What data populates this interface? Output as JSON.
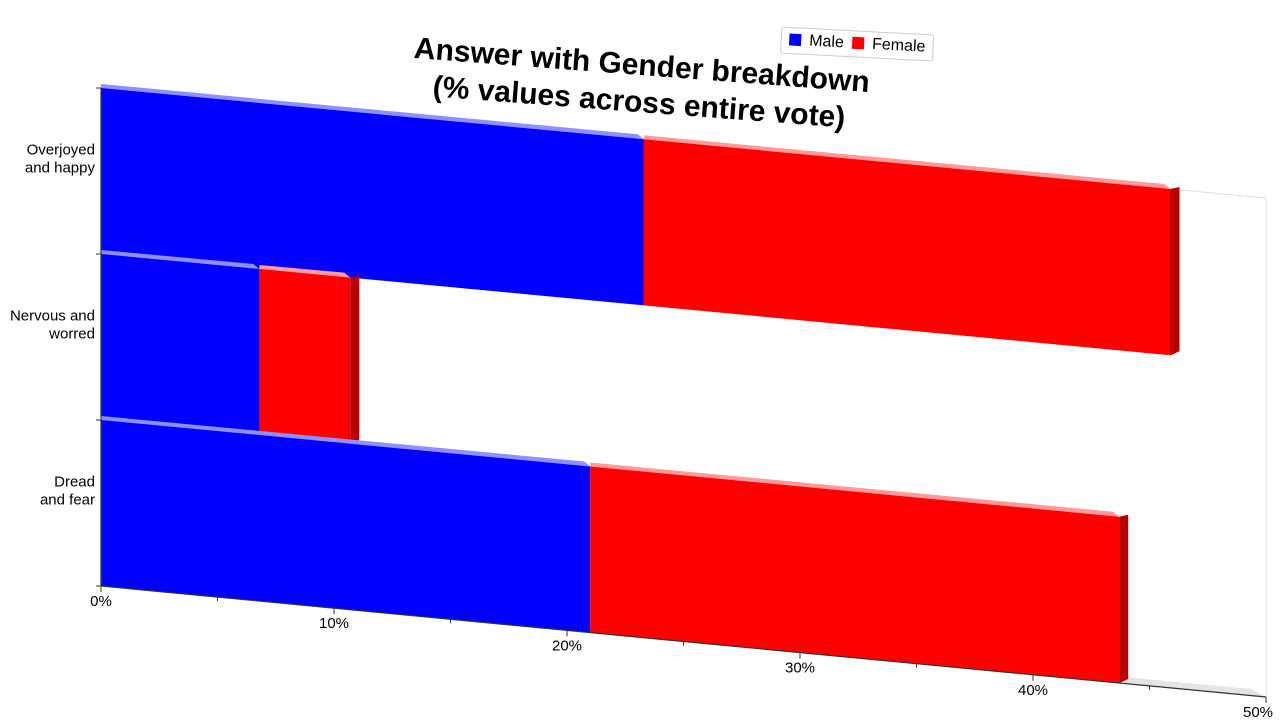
{
  "chart_data": {
    "type": "bar",
    "orientation": "horizontal",
    "stacked": true,
    "style": "3d-perspective",
    "title": "Answer with Gender breakdown",
    "subtitle": "(% values across entire vote)",
    "categories": [
      "Overjoyed and happy",
      "Nervous and worred",
      "Dread and fear"
    ],
    "category_lines": [
      [
        "Overjoyed",
        "and happy"
      ],
      [
        "Nervous and",
        "worred"
      ],
      [
        "Dread",
        "and fear"
      ]
    ],
    "series": [
      {
        "name": "Male",
        "color": "#0000ff",
        "values": [
          23.3,
          6.8,
          21.0
        ]
      },
      {
        "name": "Female",
        "color": "#ff0000",
        "values": [
          22.6,
          3.9,
          22.7
        ]
      }
    ],
    "xlim": [
      0,
      50
    ],
    "x_ticks": [
      "0%",
      "10%",
      "20%",
      "30%",
      "40%",
      "50%"
    ],
    "x_tick_values": [
      0,
      10,
      20,
      30,
      40,
      50
    ],
    "grid": false,
    "legend_position": "top-right"
  }
}
